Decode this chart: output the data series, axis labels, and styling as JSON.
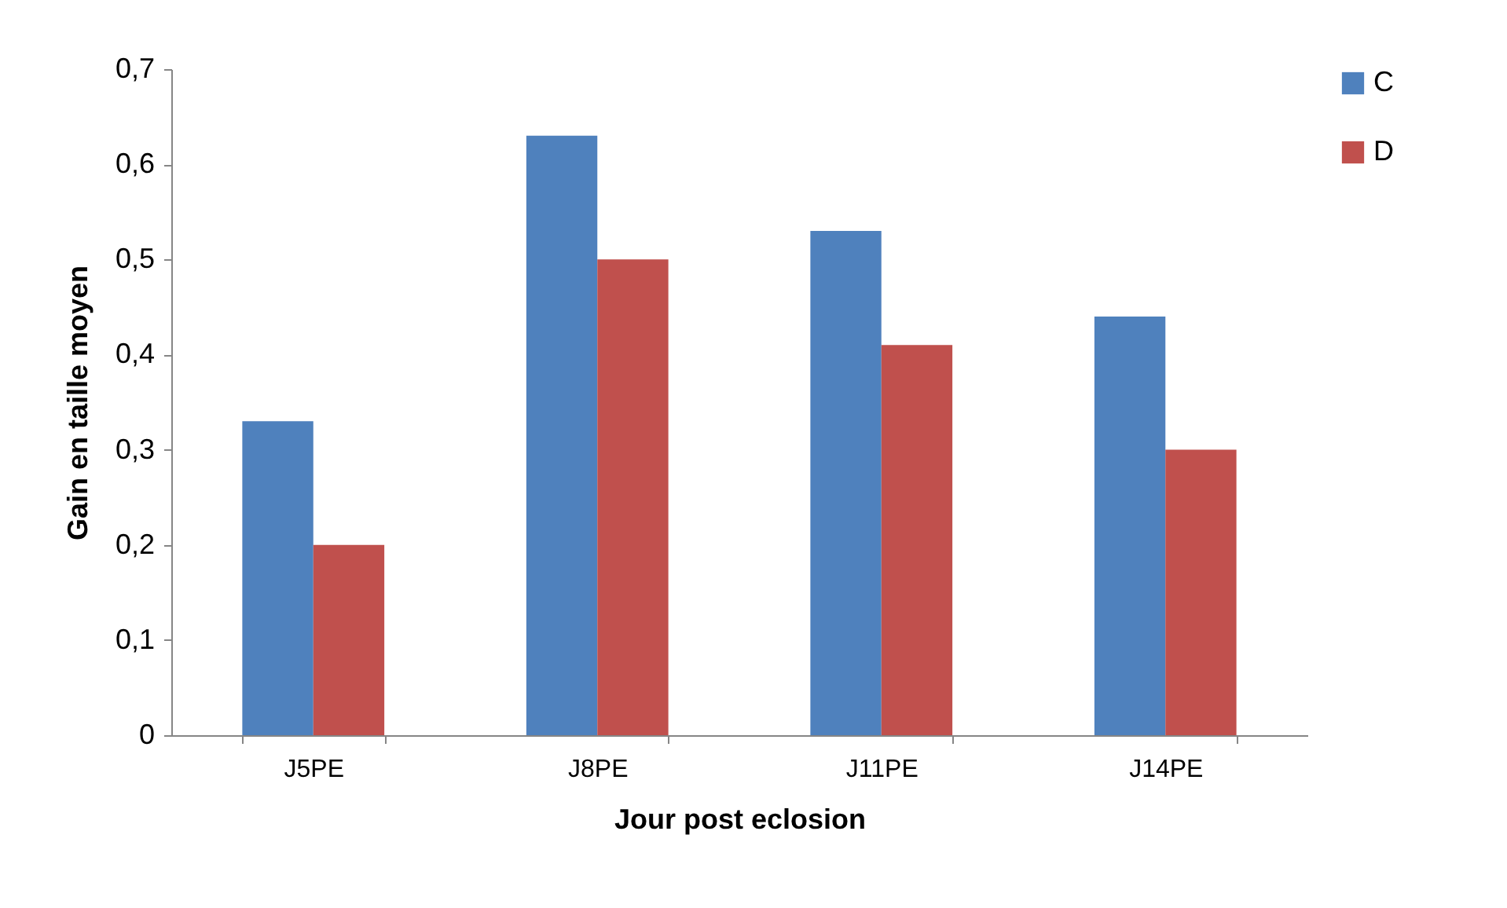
{
  "chart_data": {
    "type": "bar",
    "xlabel": "Jour post eclosion",
    "ylabel": "Gain en taille moyen",
    "categories": [
      "J5PE",
      "J8PE",
      "J11PE",
      "J14PE"
    ],
    "series": [
      {
        "name": "C",
        "color": "#4f81bd",
        "values": [
          0.33,
          0.63,
          0.53,
          0.44
        ]
      },
      {
        "name": "D",
        "color": "#c0504d",
        "values": [
          0.2,
          0.5,
          0.41,
          0.3
        ]
      }
    ],
    "ylim": [
      0,
      0.7
    ],
    "yticks": [
      0,
      {
        "value": 0.1,
        "label": "0,1"
      },
      {
        "value": 0.2,
        "label": "0,2"
      },
      {
        "value": 0.3,
        "label": "0,3"
      },
      {
        "value": 0.4,
        "label": "0,4"
      },
      {
        "value": 0.5,
        "label": "0,5"
      },
      {
        "value": 0.6,
        "label": "0,6"
      },
      {
        "value": 0.7,
        "label": "0,7"
      }
    ],
    "legend": "right"
  }
}
